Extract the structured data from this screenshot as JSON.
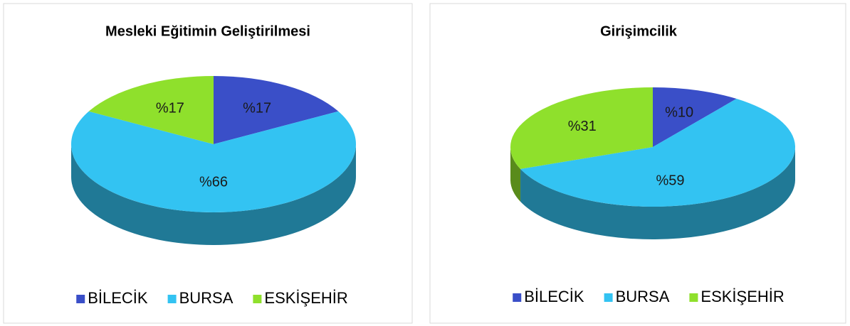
{
  "chart_data": [
    {
      "type": "pie",
      "title": "Mesleki Eğitimin Geliştirilmesi",
      "categories": [
        "BİLECİK",
        "BURSA",
        "ESKİŞEHİR"
      ],
      "values": [
        17,
        66,
        17
      ],
      "value_labels": [
        "%17",
        "%66",
        "%17"
      ],
      "colors": [
        "#3a4fc8",
        "#33c3f2",
        "#8fe02c"
      ],
      "legend": "bottom"
    },
    {
      "type": "pie",
      "title": "Girişimcilik",
      "categories": [
        "BİLECİK",
        "BURSA",
        "ESKİŞEHİR"
      ],
      "values": [
        10,
        59,
        31
      ],
      "value_labels": [
        "%10",
        "%59",
        "%31"
      ],
      "colors": [
        "#3a4fc8",
        "#33c3f2",
        "#8fe02c"
      ],
      "legend": "bottom"
    }
  ]
}
